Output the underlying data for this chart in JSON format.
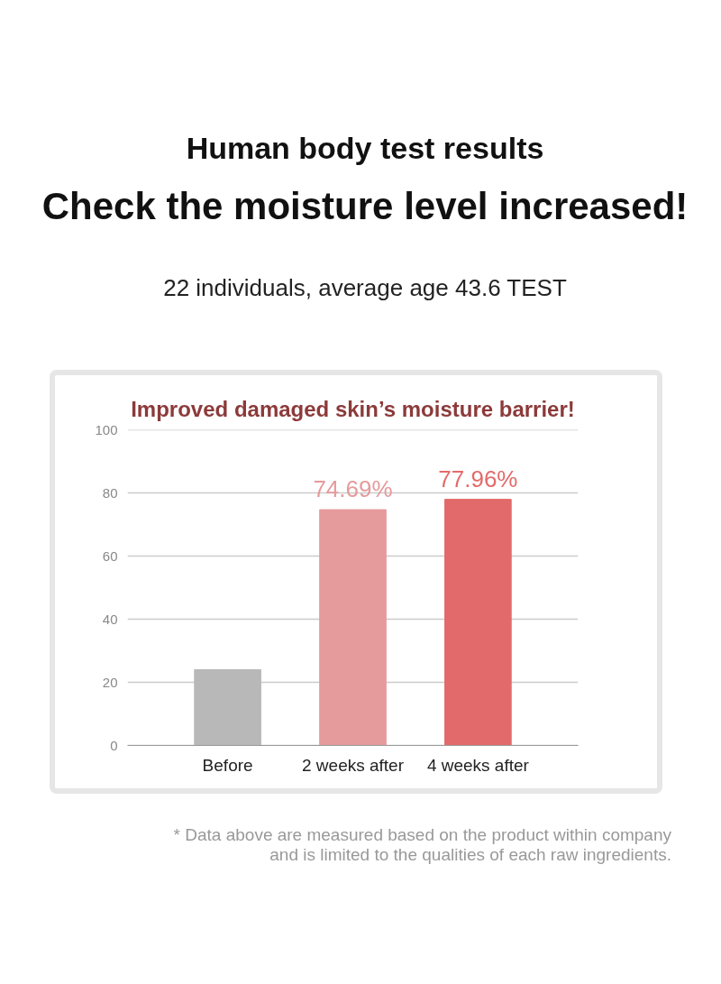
{
  "chart_data": {
    "type": "bar",
    "title": "Human body test results",
    "subtitle": "Check the moisture level increased!",
    "annotations": [
      "22 individuals, average age 43.6 TEST",
      "Improved damaged skin’s moisture barrier!",
      "* Data above are measured based on the product within company\nand is limited to the qualities of each raw ingredients."
    ],
    "categories": [
      "Before",
      "2 weeks after",
      "4 weeks after"
    ],
    "values": [
      24,
      74.69,
      77.96
    ],
    "colors": [
      "#b8b8b8",
      "#e59a9c",
      "#e36a6a"
    ],
    "value_labels": [
      null,
      "74.69%",
      "77.96%"
    ],
    "ylim": [
      0,
      100
    ],
    "yticks": [
      0,
      20,
      40,
      60,
      80,
      100
    ],
    "grid": "y"
  }
}
